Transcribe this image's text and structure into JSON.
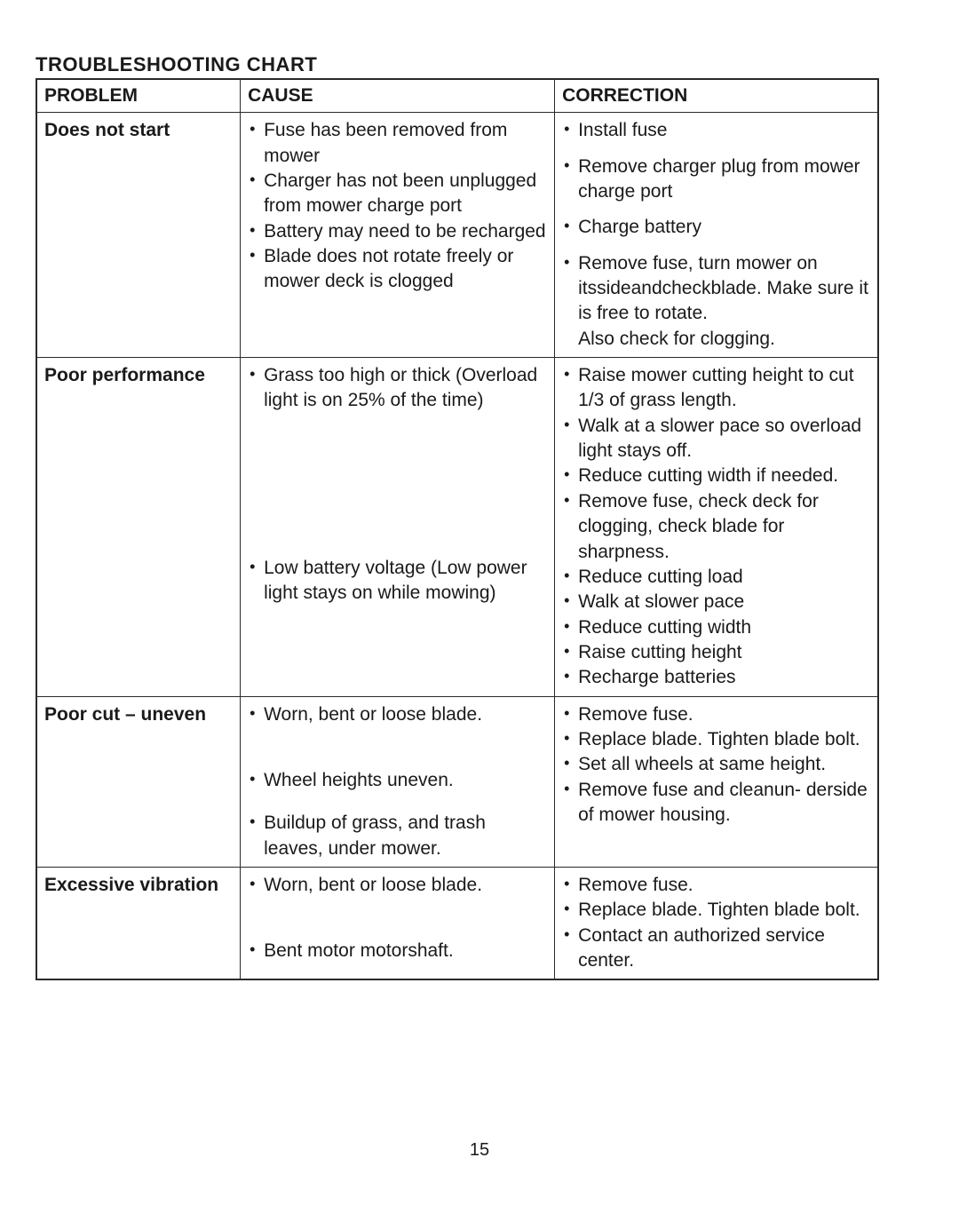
{
  "title": "TROUBLESHOOTING CHART",
  "columns": [
    "PROBLEM",
    "CAUSE",
    "CORRECTION"
  ],
  "rows": [
    {
      "problem": "Does not start",
      "cause": [
        "Fuse has been removed from mower",
        "Charger has not been unplugged from mower charge port",
        "Battery may need to be recharged",
        "Blade does not rotate freely or mower deck is clogged"
      ],
      "correction": [
        "Install fuse",
        "Remove charger plug from mower charge port",
        "Charge battery",
        "Remove fuse, turn mower on itssideandcheckblade. Make sure it is free to rotate.\nAlso check for clogging."
      ],
      "gap_after_cause_indices": [],
      "gap_after_correction_indices": [
        0,
        1,
        2
      ]
    },
    {
      "problem": "Poor performance",
      "cause": [
        "Grass too high or thick (Overload light is on 25% of the time)",
        "Low battery voltage (Low power light stays on while mowing)"
      ],
      "correction": [
        "Raise mower cutting height to cut 1/3 of grass length.",
        "Walk at a slower pace so overload light stays off.",
        "Reduce cutting width if needed.",
        "Remove fuse, check deck for clogging, check blade for sharpness.",
        "Reduce cutting load",
        "Walk at slower pace",
        "Reduce cutting width",
        "Raise cutting height",
        "Recharge batteries"
      ],
      "cause_large_gap_after": 0
    },
    {
      "problem": "Poor cut – uneven",
      "cause": [
        "Worn, bent or loose blade.",
        "Wheel heights uneven.",
        "Buildup of grass, and trash leaves, under mower."
      ],
      "correction": [
        "Remove fuse.",
        "Replace blade.  Tighten blade bolt.",
        "Set all wheels at same height.",
        "Remove fuse and cleanun- derside of mower housing."
      ],
      "cause_medium_gap_after": [
        0,
        1
      ]
    },
    {
      "problem": "Excessive vibration",
      "cause": [
        "Worn, bent or loose blade.",
        "Bent motor motorshaft."
      ],
      "correction": [
        "Remove fuse.",
        "Replace blade. Tighten blade bolt.",
        "Contact an authorized service center."
      ],
      "cause_medium_gap_after": [
        0
      ]
    }
  ],
  "pageNumber": "15"
}
